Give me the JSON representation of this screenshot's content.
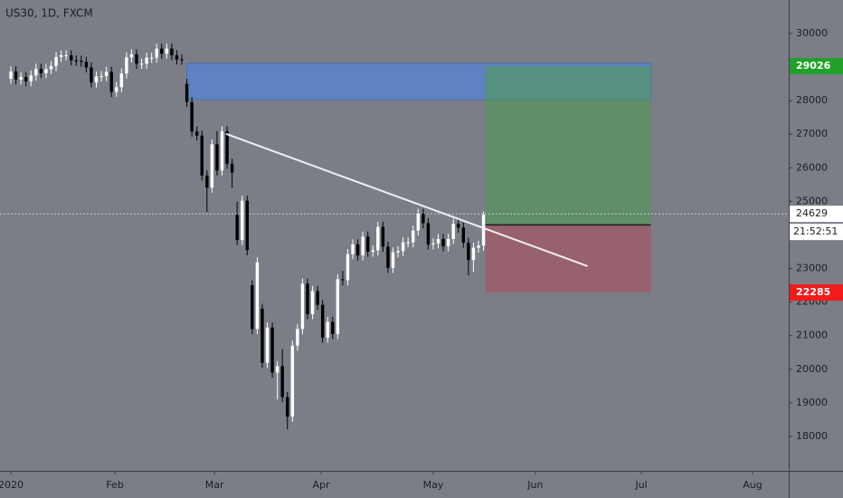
{
  "chart_data": {
    "type": "candlestick",
    "title": "US30, 1D, FXCM",
    "open": [
      28650,
      28870,
      28630,
      28700,
      28580,
      28750,
      28950,
      28820,
      28940,
      29030,
      29300,
      29350,
      29350,
      29200,
      29190,
      29160,
      28990,
      28540,
      28720,
      28730,
      28860,
      28260,
      28400,
      28810,
      29290,
      29380,
      29100,
      29100,
      29280,
      29280,
      29550,
      29400,
      29550,
      29350,
      29230,
      28500,
      27960,
      27080,
      26960,
      25770,
      25410,
      26700,
      25920,
      27090,
      26120,
      24600,
      23850,
      25020,
      22500,
      21200,
      21800,
      20190,
      21240,
      19900,
      20090,
      19170,
      18590,
      20700,
      21200,
      22550,
      21640,
      22330,
      21920,
      20940,
      21410,
      21050,
      22680,
      22650,
      23430,
      23720,
      23390,
      23950,
      23500,
      23540,
      24240,
      23650,
      23020,
      23480,
      23520,
      23780,
      23780,
      24130,
      24630,
      24350,
      23720,
      23750,
      23880,
      23660,
      23880,
      24330,
      24220,
      23770,
      23250,
      23620,
      23680
    ],
    "high": [
      29020,
      29020,
      28850,
      28850,
      28900,
      29100,
      29100,
      29090,
      29180,
      29450,
      29500,
      29500,
      29500,
      29350,
      29340,
      29310,
      29140,
      28870,
      28880,
      29010,
      29010,
      28550,
      28960,
      29440,
      29530,
      29530,
      29250,
      29430,
      29430,
      29700,
      29700,
      29700,
      29700,
      29500,
      29380,
      28650,
      28110,
      27230,
      27110,
      25920,
      26850,
      27090,
      27240,
      27240,
      26270,
      24990,
      25170,
      25170,
      22650,
      23335,
      21950,
      21390,
      21390,
      20240,
      20600,
      19320,
      20850,
      21350,
      22700,
      22700,
      22480,
      22480,
      22070,
      21560,
      21560,
      22830,
      22930,
      23580,
      23870,
      23870,
      24100,
      24100,
      23690,
      24390,
      24390,
      23800,
      23630,
      23670,
      23930,
      23930,
      24280,
      24780,
      24780,
      24500,
      23900,
      24030,
      24030,
      24030,
      24480,
      24480,
      24370,
      23920,
      23770,
      23830,
      24700
    ],
    "low": [
      28500,
      28480,
      28480,
      28430,
      28430,
      28600,
      28670,
      28670,
      28790,
      28880,
      29150,
      29200,
      29050,
      29040,
      29010,
      28840,
      28390,
      28390,
      28570,
      28580,
      28110,
      28110,
      28250,
      28660,
      29140,
      28950,
      28950,
      28950,
      29130,
      29130,
      29250,
      29250,
      29200,
      29080,
      29070,
      27810,
      26930,
      26810,
      25620,
      24680,
      25260,
      25770,
      25770,
      25970,
      25400,
      23700,
      23700,
      23400,
      21050,
      21050,
      20040,
      20040,
      19750,
      19100,
      19020,
      18210,
      18440,
      20550,
      21050,
      21490,
      21490,
      21770,
      20790,
      20790,
      20900,
      20900,
      22500,
      22500,
      23280,
      23240,
      23240,
      23350,
      23350,
      23390,
      23500,
      22870,
      22870,
      23330,
      23370,
      23630,
      23630,
      23980,
      24200,
      23570,
      23570,
      23600,
      23510,
      23510,
      23730,
      24070,
      23620,
      22800,
      22900,
      23470,
      23530
    ],
    "close": [
      28870,
      28630,
      28700,
      28580,
      28750,
      28950,
      28820,
      28940,
      29030,
      29300,
      29350,
      29350,
      29200,
      29190,
      29160,
      28990,
      28540,
      28720,
      28730,
      28860,
      28260,
      28400,
      28810,
      29290,
      29380,
      29100,
      29100,
      29280,
      29280,
      29550,
      29400,
      29550,
      29350,
      29230,
      29220,
      27960,
      27080,
      26960,
      25770,
      25410,
      26700,
      25920,
      27090,
      26120,
      25860,
      23850,
      25020,
      23550,
      21200,
      23185,
      20190,
      21240,
      19900,
      20090,
      19170,
      18590,
      20700,
      21200,
      22550,
      21640,
      22330,
      21920,
      20940,
      21410,
      21050,
      22680,
      22650,
      23430,
      23720,
      23390,
      23950,
      23500,
      23540,
      24240,
      23650,
      23020,
      23480,
      23520,
      23780,
      23780,
      24130,
      24630,
      24350,
      23720,
      23750,
      23880,
      23660,
      23880,
      24330,
      24220,
      23770,
      23250,
      23620,
      23680,
      24600
    ],
    "up_color": "#ffffff",
    "down_color": "#000000",
    "xlim": [
      -2.16,
      154.7
    ],
    "ylim": [
      16974,
      30998
    ],
    "xticks": [
      {
        "value": 0,
        "label": "2020"
      },
      {
        "value": 20.7,
        "label": "Feb"
      },
      {
        "value": 40.5,
        "label": "Mar"
      },
      {
        "value": 61.7,
        "label": "Apr"
      },
      {
        "value": 84,
        "label": "May"
      },
      {
        "value": 104.3,
        "label": "Jun"
      },
      {
        "value": 125.4,
        "label": "Jul"
      },
      {
        "value": 147.5,
        "label": "Aug"
      }
    ],
    "yticks": [
      18000,
      19000,
      20000,
      21000,
      22000,
      23000,
      25000,
      26000,
      27000,
      28000,
      30000
    ],
    "zone": {
      "x": [
        35,
        127.3
      ],
      "y": [
        28030,
        29110
      ],
      "color": "#5585d6"
    },
    "position": {
      "x": [
        94.4,
        127.3
      ],
      "entry": 24300,
      "target": 29026,
      "stop": 22285,
      "profit_color": "#4f9a55",
      "loss_color": "#a05a66"
    },
    "trendline": {
      "x": [
        42.8,
        114.7
      ],
      "y": [
        27010,
        23070
      ],
      "color": "#f0f0f0"
    },
    "last_price": 24629,
    "countdown": "21:52:51"
  }
}
